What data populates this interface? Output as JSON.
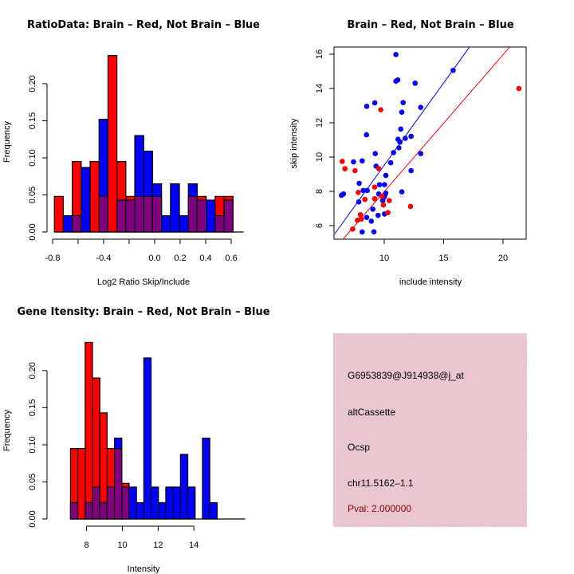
{
  "colors": {
    "brain": "#ff0000",
    "not_brain": "#0000ff",
    "overlap": "#800080",
    "panel_bg": "#eac3cd",
    "pval_text": "#8b0000"
  },
  "chart_data": [
    {
      "id": "ratio-histogram",
      "type": "bar",
      "title": "RatioData: Brain – Red, Not Brain – Blue",
      "xlabel": "Log2 Ratio Skip/Include",
      "ylabel": "Frequency",
      "xlim": [
        -0.81,
        0.66
      ],
      "ylim": [
        0,
        0.24
      ],
      "xticks": [
        -0.8,
        -0.6,
        -0.4,
        -0.2,
        0.0,
        0.2,
        0.4,
        0.6
      ],
      "xtick_labels": [
        "-0.8",
        "",
        "-0.4",
        "",
        "0.0",
        "0.2",
        "0.4",
        "0.6"
      ],
      "yticks": [
        0.0,
        0.05,
        0.1,
        0.15,
        0.2
      ],
      "ytick_labels": [
        "0.00",
        "0.05",
        "0.10",
        "0.15",
        "0.20"
      ],
      "bin_start": -0.786,
      "bin_width": 0.07,
      "series": [
        {
          "name": "Brain",
          "color": "red",
          "values": [
            0.048,
            0,
            0.095,
            0,
            0.095,
            0.048,
            0.238,
            0.095,
            0.048,
            0.048,
            0.048,
            0.048,
            0,
            0,
            0,
            0.048,
            0.048,
            0,
            0.048,
            0.048
          ]
        },
        {
          "name": "Not Brain",
          "color": "blue",
          "values": [
            0,
            0.022,
            0.022,
            0.087,
            0,
            0.152,
            0,
            0.043,
            0.043,
            0.13,
            0.109,
            0.065,
            0.022,
            0.065,
            0.022,
            0.065,
            0.043,
            0.043,
            0.022,
            0.043
          ]
        }
      ]
    },
    {
      "id": "intensity-scatter",
      "type": "scatter",
      "title": "Brain – Red, Not Brain – Blue",
      "xlabel": "include intensity",
      "ylabel": "skip intensity",
      "xlim": [
        5.77,
        21.95
      ],
      "ylim": [
        5.21,
        16.42
      ],
      "xticks": [
        10,
        15,
        20
      ],
      "xtick_labels": [
        "10",
        "15",
        "20"
      ],
      "yticks": [
        6,
        8,
        10,
        12,
        14,
        16
      ],
      "ytick_labels": [
        "6",
        "8",
        "10",
        "12",
        "14",
        "16"
      ],
      "series": [
        {
          "name": "Not Brain",
          "color": "blue",
          "points": [
            [
              10.98,
              15.98
            ],
            [
              15.8,
              15.06
            ],
            [
              10.98,
              14.43
            ],
            [
              11.14,
              14.5
            ],
            [
              12.6,
              14.31
            ],
            [
              9.2,
              13.16
            ],
            [
              8.52,
              12.96
            ],
            [
              11.59,
              13.18
            ],
            [
              13.07,
              12.9
            ],
            [
              11.48,
              12.62
            ],
            [
              11.39,
              11.63
            ],
            [
              8.5,
              11.3
            ],
            [
              11.16,
              11.04
            ],
            [
              11.32,
              10.87
            ],
            [
              11.77,
              11.09
            ],
            [
              12.26,
              11.21
            ],
            [
              11.23,
              10.54
            ],
            [
              10.78,
              10.26
            ],
            [
              9.24,
              10.2
            ],
            [
              13.07,
              10.2
            ],
            [
              7.41,
              9.72
            ],
            [
              8.14,
              9.78
            ],
            [
              9.31,
              9.47
            ],
            [
              10.54,
              9.67
            ],
            [
              10.13,
              8.93
            ],
            [
              12.26,
              9.21
            ],
            [
              7.89,
              8.47
            ],
            [
              9.6,
              8.39
            ],
            [
              10.02,
              8.39
            ],
            [
              6.4,
              7.77
            ],
            [
              6.56,
              7.85
            ],
            [
              8.23,
              8.05
            ],
            [
              8.57,
              8.05
            ],
            [
              9.53,
              7.85
            ],
            [
              10.13,
              7.89
            ],
            [
              11.48,
              7.97
            ],
            [
              7.85,
              7.38
            ],
            [
              9.87,
              7.46
            ],
            [
              10.02,
              7.69
            ],
            [
              9.04,
              6.96
            ],
            [
              8.52,
              6.48
            ],
            [
              9.48,
              6.6
            ],
            [
              10.02,
              6.68
            ],
            [
              8.91,
              6.26
            ],
            [
              8.14,
              5.63
            ],
            [
              9.13,
              5.64
            ]
          ],
          "fit_line": {
            "x0": 5.84,
            "y0": 5.53,
            "x1": 17.16,
            "y1": 16.4
          }
        },
        {
          "name": "Brain",
          "color": "red",
          "points": [
            [
              21.34,
              14.0
            ],
            [
              9.71,
              12.76
            ],
            [
              6.46,
              9.75
            ],
            [
              6.69,
              9.32
            ],
            [
              7.54,
              9.21
            ],
            [
              9.53,
              9.33
            ],
            [
              7.81,
              7.94
            ],
            [
              9.19,
              8.25
            ],
            [
              8.37,
              7.53
            ],
            [
              9.19,
              7.57
            ],
            [
              9.8,
              7.72
            ],
            [
              10.42,
              7.46
            ],
            [
              9.93,
              7.2
            ],
            [
              12.21,
              7.12
            ],
            [
              10.31,
              6.76
            ],
            [
              7.99,
              6.64
            ],
            [
              7.74,
              6.31
            ],
            [
              8.07,
              6.39
            ],
            [
              7.34,
              5.8
            ]
          ],
          "fit_line": {
            "x0": 6.44,
            "y0": 5.14,
            "x1": 20.54,
            "y1": 16.4
          }
        }
      ]
    },
    {
      "id": "gene-intensity-histogram",
      "type": "bar",
      "title": "Gene Itensity: Brain – Red, Not Brain – Blue",
      "xlabel": "Intensity",
      "ylabel": "Frequency",
      "xlim": [
        6.1,
        16.6
      ],
      "ylim": [
        0,
        0.24
      ],
      "xticks": [
        8,
        10,
        12,
        14
      ],
      "xtick_labels": [
        "8",
        "10",
        "12",
        "14"
      ],
      "yticks": [
        0.0,
        0.05,
        0.1,
        0.15,
        0.2
      ],
      "ytick_labels": [
        "0.00",
        "0.05",
        "0.10",
        "0.15",
        "0.20"
      ],
      "bin_start": 7.1,
      "bin_width": 0.41,
      "series": [
        {
          "name": "Brain",
          "color": "red",
          "values": [
            0.095,
            0.095,
            0.238,
            0.19,
            0.143,
            0.095,
            0.095,
            0.048,
            0,
            0,
            0,
            0,
            0,
            0,
            0,
            0,
            0,
            0,
            0,
            0
          ]
        },
        {
          "name": "Not Brain",
          "color": "blue",
          "values": [
            0.022,
            0,
            0.022,
            0.043,
            0.022,
            0.043,
            0.109,
            0.043,
            0.043,
            0.022,
            0.217,
            0.043,
            0.022,
            0.043,
            0.043,
            0.087,
            0.043,
            0,
            0.109,
            0.022
          ]
        }
      ]
    }
  ],
  "info_panel": {
    "probe_id": "G6953839@J914938@j_at",
    "event_type": "altCassette",
    "gene": "Ocsp",
    "locus": "chr11.5162–1.1",
    "pval": "Pval: 2.000000"
  }
}
